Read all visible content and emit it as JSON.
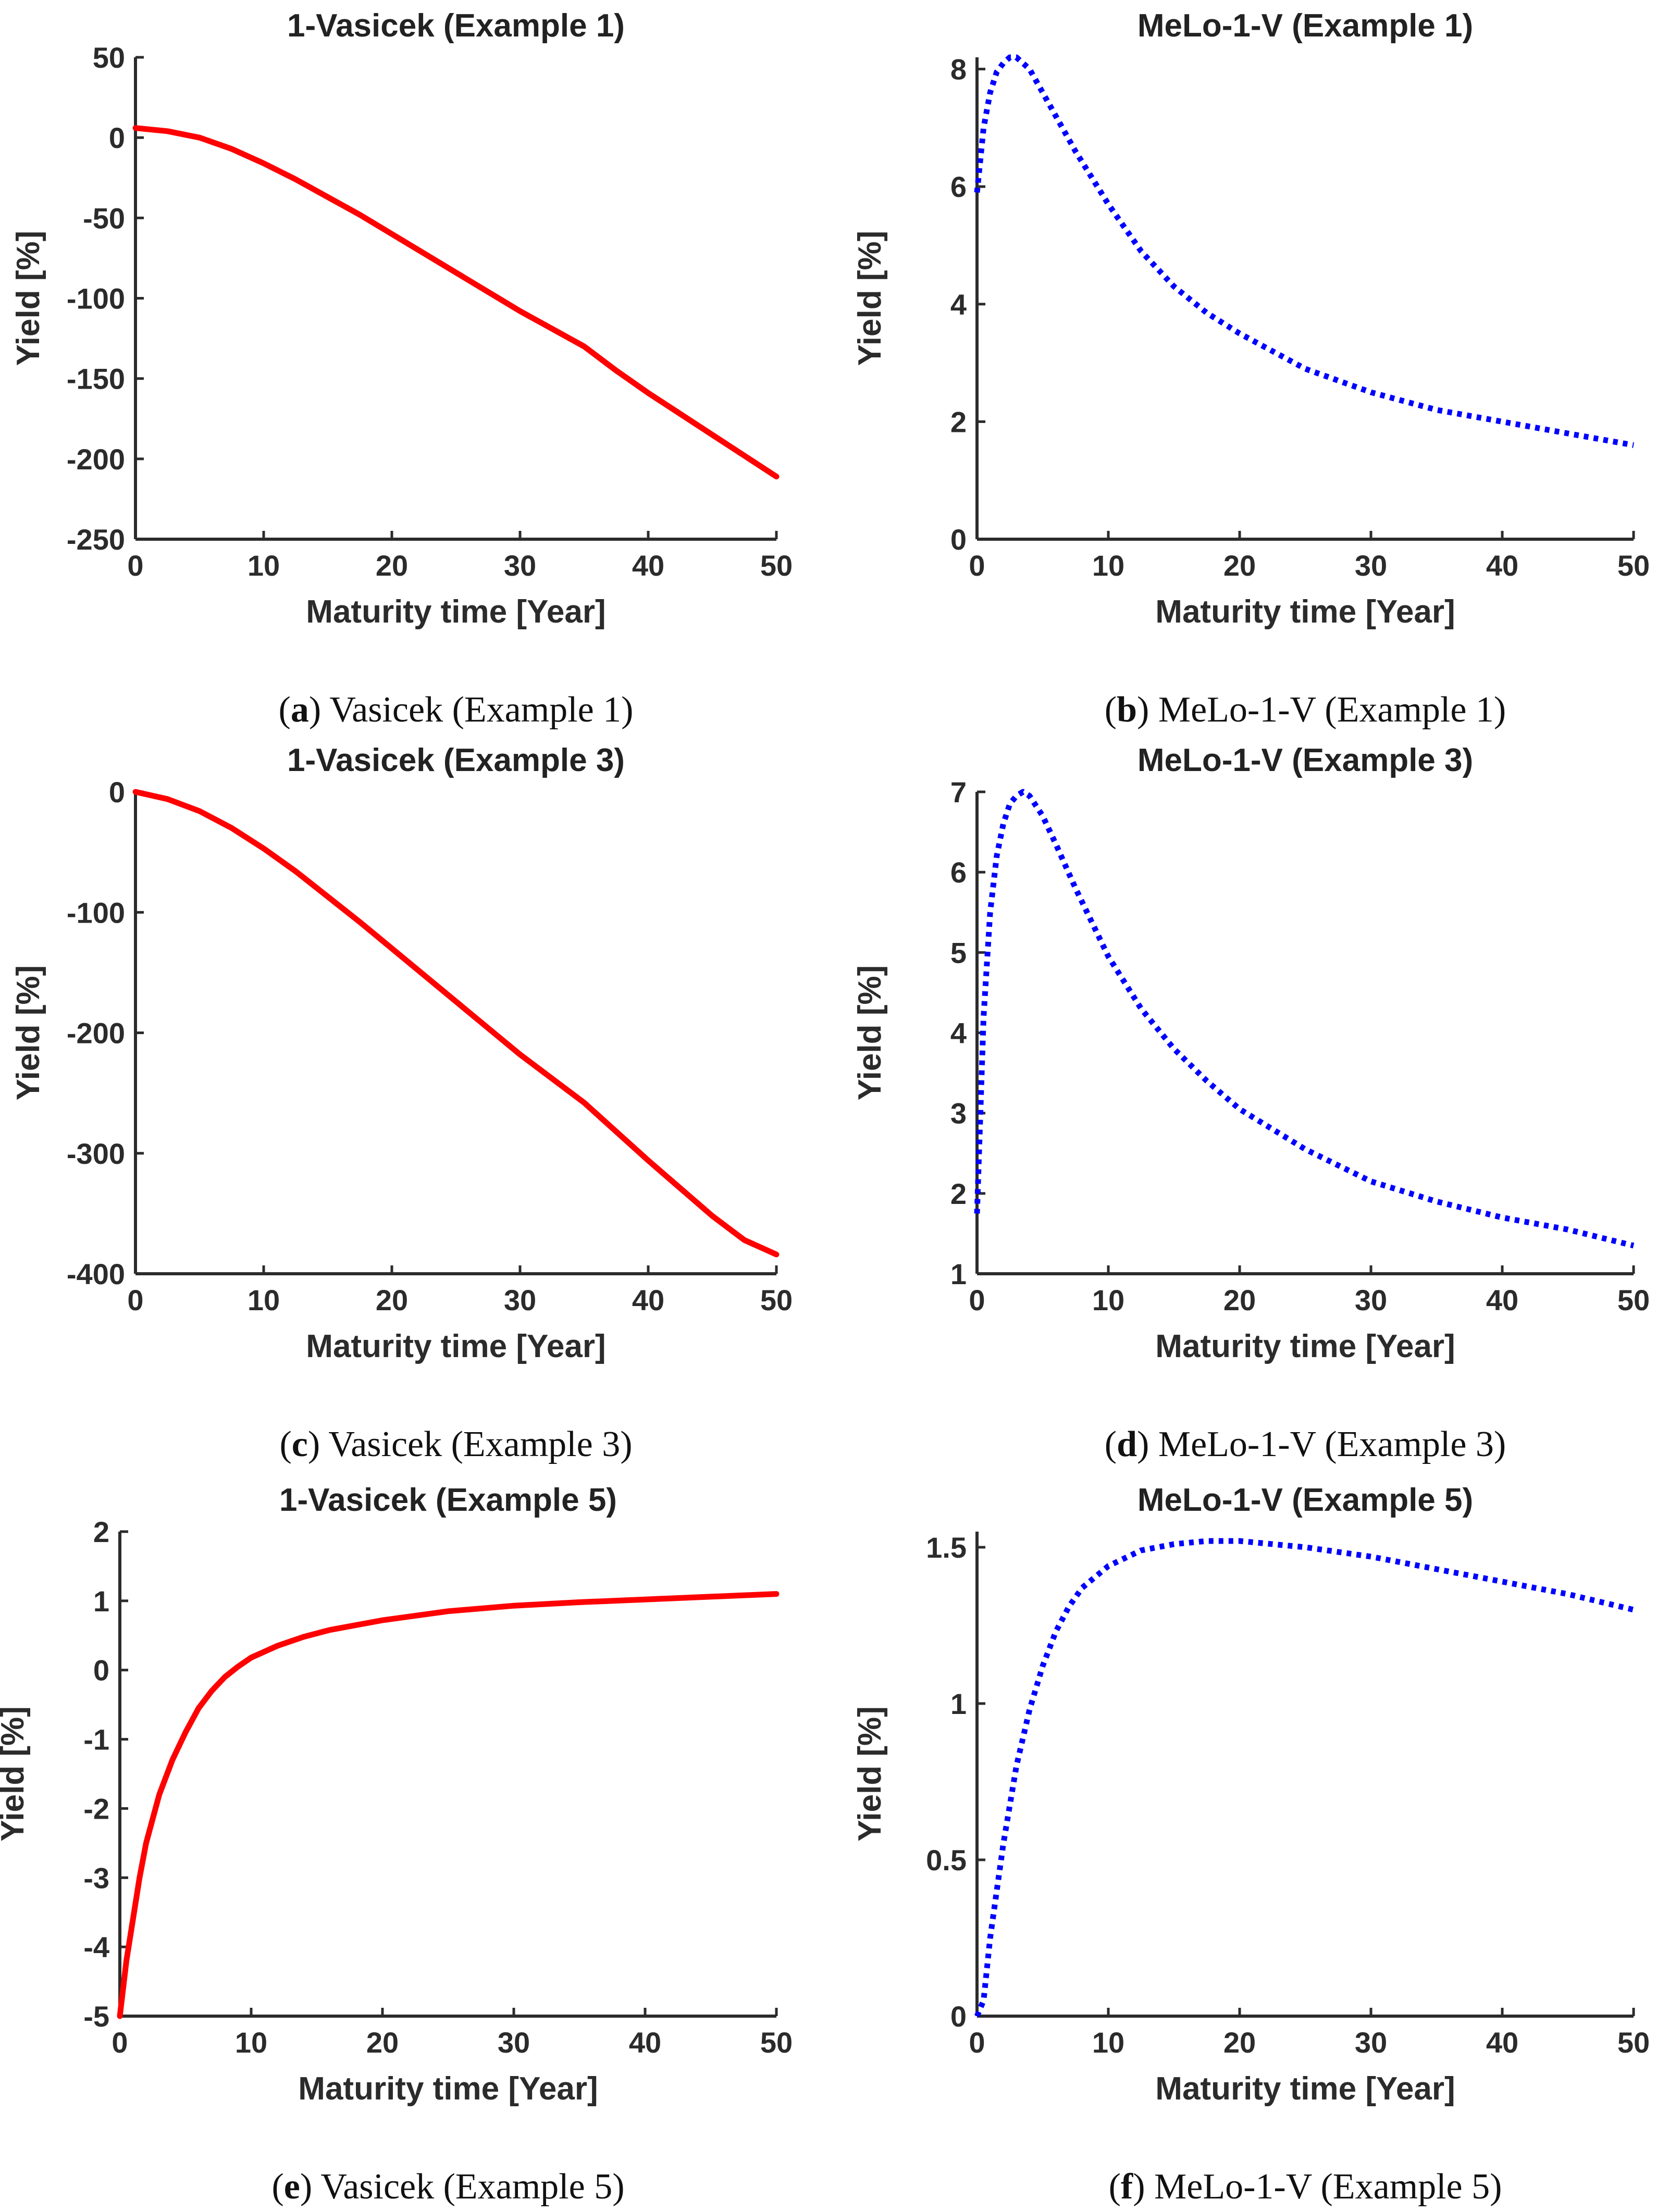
{
  "figure_name": "yield-curves-figure",
  "chart_data": [
    {
      "type": "line",
      "panel": "a",
      "title": "1-Vasicek (Example 1)",
      "caption": {
        "label": "a",
        "text": "Vasicek (Example 1)"
      },
      "xlabel": "Maturity time [Year]",
      "ylabel": "Yield [%]",
      "xlim": [
        0,
        50
      ],
      "ylim": [
        -250,
        50
      ],
      "xticks": [
        0,
        10,
        20,
        30,
        40,
        50
      ],
      "yticks": [
        -250,
        -200,
        -150,
        -100,
        -50,
        0,
        50
      ],
      "series": [
        {
          "name": "1-Vasicek",
          "color": "#ff0000",
          "style": "solid",
          "x": [
            0,
            2.5,
            5,
            7.5,
            10,
            12.5,
            15,
            17.5,
            20,
            22.5,
            25,
            27.5,
            30,
            32.5,
            35,
            37.5,
            40,
            42.5,
            45,
            47.5,
            50
          ],
          "y": [
            6,
            4,
            0,
            -7,
            -16,
            -26,
            -37,
            -48,
            -60,
            -72,
            -84,
            -96,
            -108,
            -119,
            -130,
            -145,
            -159,
            -172,
            -185,
            -198,
            -211
          ]
        }
      ]
    },
    {
      "type": "line",
      "panel": "b",
      "title": "MeLo-1-V (Example 1)",
      "caption": {
        "label": "b",
        "text": "MeLo-1-V (Example 1)"
      },
      "xlabel": "Maturity time [Year]",
      "ylabel": "Yield [%]",
      "xlim": [
        0,
        50
      ],
      "ylim": [
        0,
        8.2
      ],
      "xticks": [
        0,
        10,
        20,
        30,
        40,
        50
      ],
      "yticks": [
        0,
        2,
        4,
        6,
        8
      ],
      "series": [
        {
          "name": "MeLo-1-V",
          "color": "#0000ff",
          "style": "dotted",
          "x": [
            0,
            0.5,
            1,
            1.5,
            2,
            2.5,
            3,
            4,
            5,
            6,
            7.5,
            10,
            12.5,
            15,
            17.5,
            20,
            25,
            30,
            35,
            40,
            45,
            50
          ],
          "y": [
            5.9,
            7.0,
            7.6,
            7.95,
            8.1,
            8.2,
            8.2,
            8.0,
            7.6,
            7.2,
            6.6,
            5.7,
            4.9,
            4.3,
            3.85,
            3.5,
            2.9,
            2.5,
            2.2,
            2.0,
            1.8,
            1.6
          ]
        }
      ]
    },
    {
      "type": "line",
      "panel": "c",
      "title": "1-Vasicek (Example 3)",
      "caption": {
        "label": "c",
        "text": "Vasicek (Example 3)"
      },
      "xlabel": "Maturity time [Year]",
      "ylabel": "Yield [%]",
      "xlim": [
        0,
        50
      ],
      "ylim": [
        -400,
        0
      ],
      "xticks": [
        0,
        10,
        20,
        30,
        40,
        50
      ],
      "yticks": [
        -400,
        -300,
        -200,
        -100,
        0
      ],
      "series": [
        {
          "name": "1-Vasicek",
          "color": "#ff0000",
          "style": "solid",
          "x": [
            0,
            2.5,
            5,
            7.5,
            10,
            12.5,
            15,
            17.5,
            20,
            22.5,
            25,
            27.5,
            30,
            32.5,
            35,
            37.5,
            40,
            42.5,
            45,
            47.5,
            50
          ],
          "y": [
            0,
            -6,
            -16,
            -30,
            -47,
            -66,
            -87,
            -108,
            -130,
            -152,
            -174,
            -196,
            -218,
            -238,
            -258,
            -282,
            -306,
            -329,
            -352,
            -372,
            -384
          ]
        }
      ]
    },
    {
      "type": "line",
      "panel": "d",
      "title": "MeLo-1-V (Example 3)",
      "caption": {
        "label": "d",
        "text": "MeLo-1-V (Example 3)"
      },
      "xlabel": "Maturity time [Year]",
      "ylabel": "Yield [%]",
      "xlim": [
        0,
        50
      ],
      "ylim": [
        1,
        7
      ],
      "xticks": [
        0,
        10,
        20,
        30,
        40,
        50
      ],
      "yticks": [
        1,
        2,
        3,
        4,
        5,
        6,
        7
      ],
      "series": [
        {
          "name": "MeLo-1-V",
          "color": "#0000ff",
          "style": "dotted",
          "x": [
            0,
            0.5,
            1,
            1.5,
            2,
            2.5,
            3,
            3.5,
            4,
            5,
            6,
            7.5,
            10,
            12.5,
            15,
            17.5,
            20,
            25,
            30,
            35,
            40,
            45,
            50
          ],
          "y": [
            1.75,
            4.2,
            5.5,
            6.2,
            6.6,
            6.85,
            6.95,
            7.0,
            6.95,
            6.7,
            6.35,
            5.8,
            4.95,
            4.3,
            3.8,
            3.4,
            3.05,
            2.55,
            2.15,
            1.9,
            1.7,
            1.55,
            1.35
          ]
        }
      ]
    },
    {
      "type": "line",
      "panel": "e",
      "title": "1-Vasicek (Example 5)",
      "caption": {
        "label": "e",
        "text": "Vasicek (Example 5)"
      },
      "xlabel": "Maturity time [Year]",
      "ylabel": "Yield [%]",
      "xlim": [
        0,
        50
      ],
      "ylim": [
        -5,
        2
      ],
      "xticks": [
        0,
        10,
        20,
        30,
        40,
        50
      ],
      "yticks": [
        -5,
        -4,
        -3,
        -2,
        -1,
        0,
        1,
        2
      ],
      "series": [
        {
          "name": "1-Vasicek",
          "color": "#ff0000",
          "style": "solid",
          "x": [
            0,
            0.5,
            1,
            1.5,
            2,
            3,
            4,
            5,
            6,
            7,
            8,
            9,
            10,
            12,
            14,
            16,
            18,
            20,
            25,
            30,
            35,
            40,
            45,
            50
          ],
          "y": [
            -5.0,
            -4.2,
            -3.6,
            -3.0,
            -2.5,
            -1.8,
            -1.3,
            -0.9,
            -0.55,
            -0.3,
            -0.1,
            0.05,
            0.18,
            0.35,
            0.48,
            0.58,
            0.65,
            0.72,
            0.85,
            0.93,
            0.98,
            1.02,
            1.06,
            1.1
          ]
        }
      ]
    },
    {
      "type": "line",
      "panel": "f",
      "title": "MeLo-1-V (Example 5)",
      "caption": {
        "label": "f",
        "text": "MeLo-1-V (Example 5)"
      },
      "xlabel": "Maturity time [Year]",
      "ylabel": "Yield [%]",
      "xlim": [
        0,
        50
      ],
      "ylim": [
        0,
        1.55
      ],
      "xticks": [
        0,
        10,
        20,
        30,
        40,
        50
      ],
      "yticks": [
        0,
        0.5,
        1,
        1.5
      ],
      "ytick_labels": [
        "0",
        "0.5",
        "1",
        "1.5"
      ],
      "series": [
        {
          "name": "MeLo-1-V",
          "color": "#0000ff",
          "style": "dotted",
          "x": [
            0,
            0.5,
            1,
            2,
            3,
            4,
            5,
            6,
            7,
            8,
            10,
            12.5,
            15,
            17.5,
            20,
            25,
            30,
            35,
            40,
            45,
            50
          ],
          "y": [
            0,
            0.05,
            0.25,
            0.55,
            0.8,
            0.98,
            1.12,
            1.23,
            1.31,
            1.37,
            1.44,
            1.49,
            1.51,
            1.52,
            1.52,
            1.5,
            1.47,
            1.43,
            1.39,
            1.35,
            1.3
          ]
        }
      ]
    }
  ]
}
